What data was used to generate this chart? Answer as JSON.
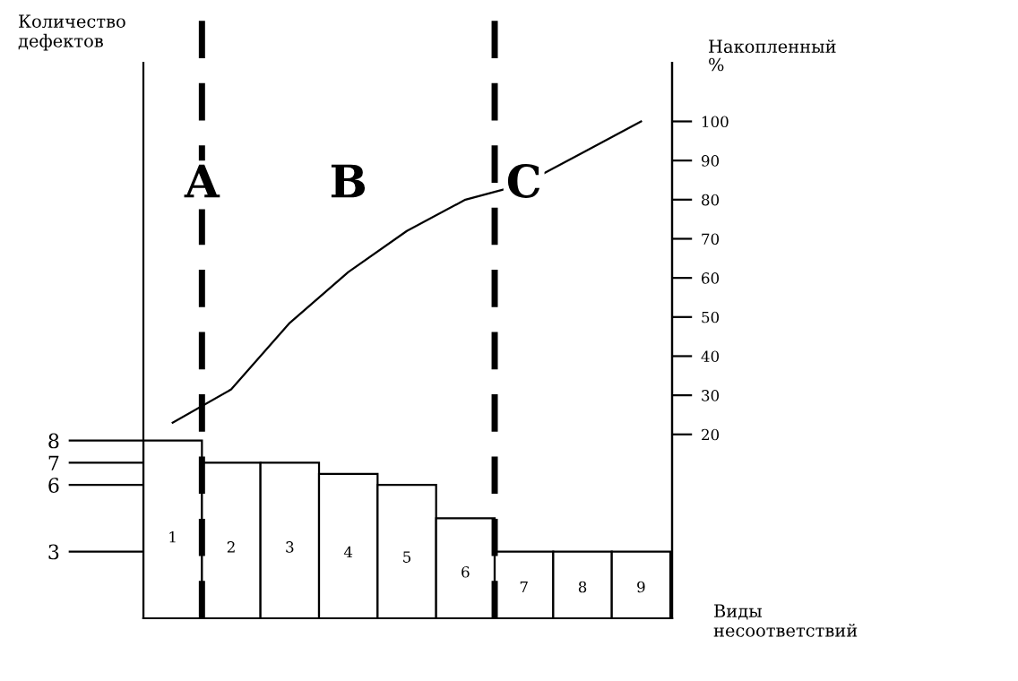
{
  "chart_data": {
    "type": "bar",
    "categories": [
      "1",
      "2",
      "3",
      "4",
      "5",
      "6",
      "7",
      "8",
      "9"
    ],
    "series": [
      {
        "color": "#ffffff",
        "values": [
          8,
          7,
          7,
          6.5,
          6,
          4.5,
          3,
          3,
          3
        ]
      },
      {
        "type": "line",
        "axis": "y2",
        "color": "#000000",
        "values": [
          23,
          31.5,
          48.5,
          61.5,
          72,
          80,
          84,
          92,
          100
        ]
      }
    ],
    "ylabel": "Количество дефектов",
    "y2label": "Накопленный %",
    "xlabel": "Виды несоответствий",
    "ylim": [
      0,
      25
    ],
    "yticks": [
      3,
      6,
      7,
      8
    ],
    "y2lim": [
      -27,
      115
    ],
    "y2ticks": [
      20,
      30,
      40,
      50,
      60,
      70,
      80,
      90,
      100
    ],
    "annotations": [
      "A",
      "B",
      "C"
    ],
    "grid": false,
    "legend": false
  }
}
